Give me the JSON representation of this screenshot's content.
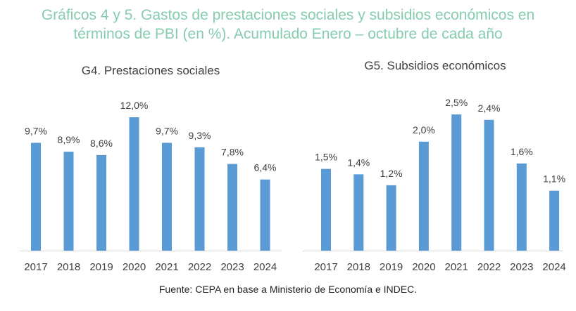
{
  "title_line1": "Gráficos 4 y 5. Gastos de prestaciones sociales y subsidios económicos en",
  "title_line2": "términos de PBI (en %). Acumulado Enero – octubre de cada año",
  "source": "Fuente: CEPA en base a Ministerio de Economía e INDEC.",
  "bar_color": "#5b9bd5",
  "chart_data": [
    {
      "type": "bar",
      "title": "G4. Prestaciones sociales",
      "categories": [
        "2017",
        "2018",
        "2019",
        "2020",
        "2021",
        "2022",
        "2023",
        "2024"
      ],
      "values": [
        9.7,
        8.9,
        8.6,
        12.0,
        9.7,
        9.3,
        7.8,
        6.4
      ],
      "labels": [
        "9,7%",
        "8,9%",
        "8,6%",
        "12,0%",
        "9,7%",
        "9,3%",
        "7,8%",
        "6,4%"
      ],
      "ylim": [
        0,
        12.0
      ],
      "grid": false
    },
    {
      "type": "bar",
      "title": "G5. Subsidios económicos",
      "categories": [
        "2017",
        "2018",
        "2019",
        "2020",
        "2021",
        "2022",
        "2023",
        "2024"
      ],
      "values": [
        1.5,
        1.4,
        1.2,
        2.0,
        2.5,
        2.4,
        1.6,
        1.1
      ],
      "labels": [
        "1,5%",
        "1,4%",
        "1,2%",
        "2,0%",
        "2,5%",
        "2,4%",
        "1,6%",
        "1,1%"
      ],
      "ylim": [
        0,
        2.5
      ],
      "grid": false
    }
  ]
}
